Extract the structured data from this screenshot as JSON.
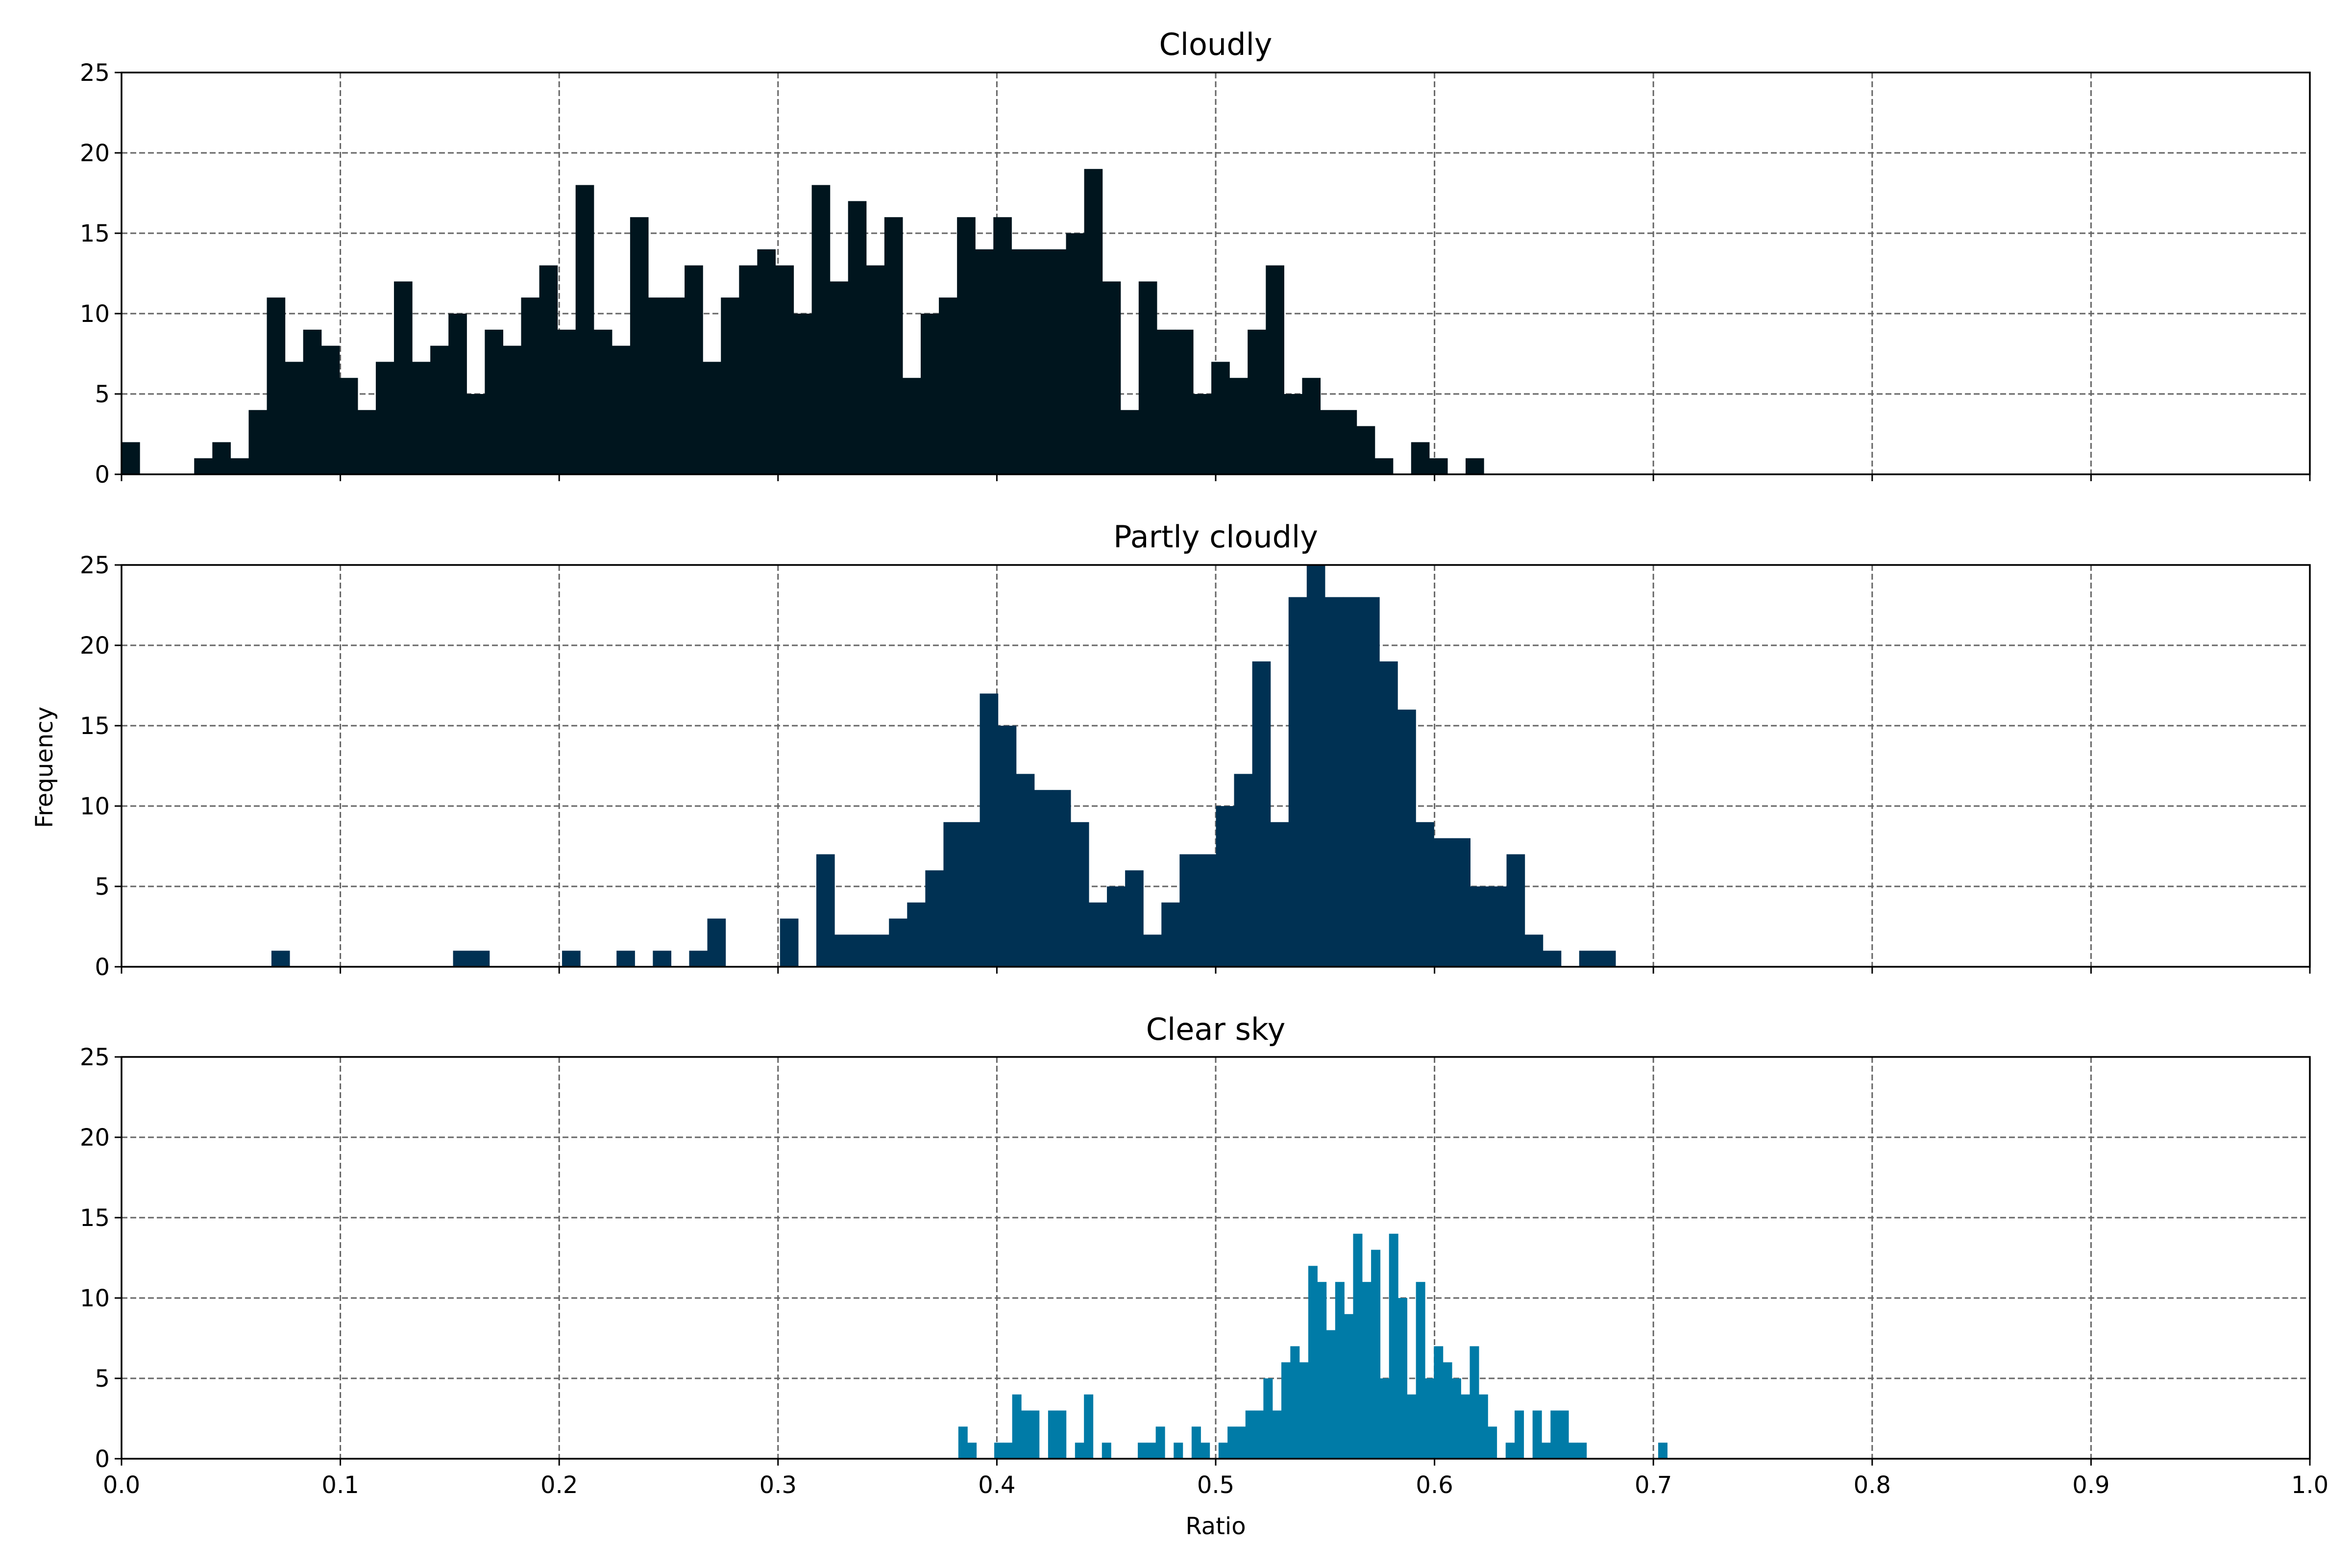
{
  "figure": {
    "ylabel": "Frequency",
    "xlabel": "Ratio"
  },
  "chart_data": [
    {
      "type": "bar",
      "title": "Cloudly",
      "color": "#00151e",
      "bin_width": 0.0083,
      "xlim": [
        0.0,
        1.0
      ],
      "ylim": [
        0,
        25
      ],
      "xticks": [
        0.0,
        0.1,
        0.2,
        0.3,
        0.4,
        0.5,
        0.6,
        0.7,
        0.8,
        0.9,
        1.0
      ],
      "xtick_labels": [],
      "yticks": [
        0,
        5,
        10,
        15,
        20,
        25
      ],
      "grid": true,
      "bin_starts": [
        0.0,
        0.0083,
        0.0166,
        0.0249,
        0.0332,
        0.0415,
        0.0498,
        0.0581,
        0.0664,
        0.0747,
        0.083,
        0.0913,
        0.0996,
        0.1079,
        0.1162,
        0.1245,
        0.1328,
        0.1411,
        0.1494,
        0.1577,
        0.166,
        0.1743,
        0.1826,
        0.1909,
        0.1992,
        0.2075,
        0.2158,
        0.2241,
        0.2324,
        0.2407,
        0.249,
        0.2573,
        0.2656,
        0.2739,
        0.2822,
        0.2905,
        0.2988,
        0.3071,
        0.3154,
        0.3237,
        0.332,
        0.3403,
        0.3486,
        0.3569,
        0.3652,
        0.3735,
        0.3818,
        0.3901,
        0.3984,
        0.4067,
        0.415,
        0.4233,
        0.4316,
        0.4399,
        0.4482,
        0.4565,
        0.4648,
        0.4731,
        0.4814,
        0.4897,
        0.498,
        0.5063,
        0.5146,
        0.5229,
        0.5312,
        0.5395,
        0.5478,
        0.5561,
        0.5644,
        0.5727,
        0.581,
        0.5893,
        0.5976,
        0.6059,
        0.6142,
        0.6225
      ],
      "values": [
        2,
        0,
        0,
        0,
        1,
        2,
        1,
        4,
        11,
        7,
        9,
        8,
        6,
        4,
        7,
        12,
        7,
        8,
        10,
        5,
        9,
        8,
        11,
        13,
        9,
        18,
        9,
        8,
        16,
        11,
        11,
        13,
        7,
        11,
        13,
        14,
        13,
        10,
        18,
        12,
        17,
        13,
        16,
        6,
        10,
        11,
        16,
        14,
        16,
        14,
        14,
        14,
        15,
        19,
        12,
        4,
        12,
        9,
        9,
        5,
        7,
        6,
        9,
        13,
        5,
        6,
        4,
        4,
        3,
        1,
        0,
        2,
        1,
        0,
        1,
        0
      ]
    },
    {
      "type": "bar",
      "title": "Partly cloudly",
      "color": "#003153",
      "bin_width": 0.0083,
      "xlim": [
        0.0,
        1.0
      ],
      "ylim": [
        0,
        25
      ],
      "xticks": [
        0.0,
        0.1,
        0.2,
        0.3,
        0.4,
        0.5,
        0.6,
        0.7,
        0.8,
        0.9,
        1.0
      ],
      "xtick_labels": [],
      "yticks": [
        0,
        5,
        10,
        15,
        20,
        25
      ],
      "grid": true,
      "bin_starts": [
        0.0685,
        0.1515,
        0.1598,
        0.2013,
        0.2262,
        0.2428,
        0.2594,
        0.2677,
        0.3009,
        0.3175,
        0.3258,
        0.3341,
        0.3424,
        0.3507,
        0.359,
        0.3673,
        0.3756,
        0.3839,
        0.3922,
        0.4005,
        0.4088,
        0.4171,
        0.4254,
        0.4337,
        0.442,
        0.4503,
        0.4586,
        0.4669,
        0.4752,
        0.4835,
        0.4918,
        0.5001,
        0.5084,
        0.5167,
        0.525,
        0.5333,
        0.5416,
        0.5499,
        0.5582,
        0.5665,
        0.5748,
        0.5831,
        0.5914,
        0.5997,
        0.608,
        0.6163,
        0.6246,
        0.6329,
        0.6412,
        0.6495,
        0.6578,
        0.6661,
        0.6744
      ],
      "values": [
        1,
        1,
        1,
        1,
        1,
        1,
        1,
        3,
        3,
        7,
        2,
        2,
        2,
        3,
        4,
        6,
        9,
        9,
        17,
        15,
        12,
        11,
        11,
        9,
        4,
        5,
        6,
        2,
        4,
        7,
        7,
        10,
        12,
        19,
        9,
        23,
        25,
        23,
        23,
        23,
        19,
        16,
        9,
        8,
        8,
        5,
        5,
        7,
        2,
        1,
        0,
        1,
        1
      ]
    },
    {
      "type": "bar",
      "title": "Clear sky",
      "color": "#007ba7",
      "bin_width": 0.00412,
      "xlim": [
        0.0,
        1.0
      ],
      "ylim": [
        0,
        25
      ],
      "xticks": [
        0.0,
        0.1,
        0.2,
        0.3,
        0.4,
        0.5,
        0.6,
        0.7,
        0.8,
        0.9,
        1.0
      ],
      "xtick_labels": [
        "0.0",
        "0.1",
        "0.2",
        "0.3",
        "0.4",
        "0.5",
        "0.6",
        "0.7",
        "0.8",
        "0.9",
        "1.0"
      ],
      "yticks": [
        0,
        5,
        10,
        15,
        20,
        25
      ],
      "grid": true,
      "bin_starts": [
        0.3824,
        0.3865,
        0.3906,
        0.3947,
        0.3988,
        0.4029,
        0.407,
        0.4111,
        0.4152,
        0.4193,
        0.4234,
        0.4275,
        0.4316,
        0.4357,
        0.4398,
        0.4439,
        0.448,
        0.4521,
        0.4562,
        0.4603,
        0.4644,
        0.4685,
        0.4726,
        0.4767,
        0.4808,
        0.4849,
        0.489,
        0.4931,
        0.4972,
        0.5013,
        0.5054,
        0.5095,
        0.5136,
        0.5177,
        0.5218,
        0.5259,
        0.53,
        0.5341,
        0.5382,
        0.5423,
        0.5464,
        0.5505,
        0.5546,
        0.5587,
        0.5628,
        0.5669,
        0.571,
        0.5751,
        0.5792,
        0.5833,
        0.5874,
        0.5915,
        0.5956,
        0.5997,
        0.6038,
        0.6079,
        0.612,
        0.6161,
        0.6202,
        0.6243,
        0.6284,
        0.6325,
        0.6366,
        0.6407,
        0.6448,
        0.6489,
        0.653,
        0.6571,
        0.6612,
        0.6653,
        0.6694,
        0.6735,
        0.6776,
        0.6817,
        0.6858,
        0.6899,
        0.694,
        0.6981,
        0.7022
      ],
      "values": [
        2,
        1,
        0,
        0,
        1,
        1,
        4,
        3,
        3,
        0,
        3,
        3,
        0,
        1,
        4,
        0,
        1,
        0,
        0,
        0,
        1,
        1,
        2,
        0,
        1,
        0,
        2,
        1,
        0,
        1,
        2,
        2,
        3,
        3,
        5,
        3,
        6,
        7,
        6,
        12,
        11,
        8,
        11,
        9,
        14,
        11,
        13,
        5,
        14,
        10,
        4,
        11,
        5,
        7,
        6,
        5,
        4,
        7,
        4,
        2,
        0,
        1,
        3,
        0,
        3,
        1,
        3,
        3,
        1,
        1,
        0,
        0,
        0,
        0,
        0,
        0,
        0,
        0,
        1
      ]
    }
  ]
}
